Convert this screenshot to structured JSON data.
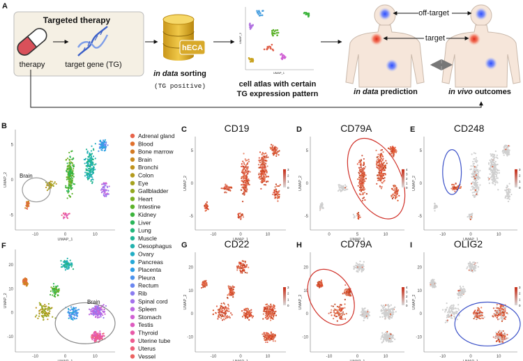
{
  "panel_a": {
    "label": "A",
    "box_title": "Targeted therapy",
    "therapy": "therapy",
    "target_gene": "target gene (TG)",
    "db_label": "hECA",
    "sorting": {
      "italic": "in data",
      "rest": "sorting"
    },
    "sorting_note": "(TG positive)",
    "inset_x_label": "UMAP_1",
    "inset_y_label": "UMAP_2",
    "atlas_caption": [
      "cell atlas with certain",
      "TG expression pattern"
    ],
    "off_target": "off-target",
    "target": "target",
    "prediction": {
      "italic": "in data",
      "rest": "prediction"
    },
    "outcomes": {
      "italic": "in vivo",
      "rest": "outcomes"
    }
  },
  "legend": [
    {
      "name": "Adrenal gland",
      "color": "#e8644a"
    },
    {
      "name": "Blood",
      "color": "#e0702c"
    },
    {
      "name": "Bone marrow",
      "color": "#d37a22"
    },
    {
      "name": "Brain",
      "color": "#c98a1e"
    },
    {
      "name": "Bronchi",
      "color": "#bf921c"
    },
    {
      "name": "Colon",
      "color": "#b39a1c"
    },
    {
      "name": "Eye",
      "color": "#a6a21e"
    },
    {
      "name": "Gallbladder",
      "color": "#93a820"
    },
    {
      "name": "Heart",
      "color": "#7aae22"
    },
    {
      "name": "Intestine",
      "color": "#5cb22a"
    },
    {
      "name": "Kidney",
      "color": "#3cb43c"
    },
    {
      "name": "Liver",
      "color": "#2ab65a"
    },
    {
      "name": "Lung",
      "color": "#22b67a"
    },
    {
      "name": "Muscle",
      "color": "#20b496"
    },
    {
      "name": "Oesophagus",
      "color": "#22b2ae"
    },
    {
      "name": "Ovary",
      "color": "#22aec4"
    },
    {
      "name": "Pancreas",
      "color": "#26a8d8"
    },
    {
      "name": "Placenta",
      "color": "#2e9ee6"
    },
    {
      "name": "Pleura",
      "color": "#4a92ee"
    },
    {
      "name": "Rectum",
      "color": "#6a86f0"
    },
    {
      "name": "Rib",
      "color": "#8a7cf0"
    },
    {
      "name": "Spinal cord",
      "color": "#a472ec"
    },
    {
      "name": "Spleen",
      "color": "#bc68e2"
    },
    {
      "name": "Stomach",
      "color": "#d062d4"
    },
    {
      "name": "Testis",
      "color": "#de5cc0"
    },
    {
      "name": "Thyroid",
      "color": "#e85aa8"
    },
    {
      "name": "Uterine tube",
      "color": "#ee5c90"
    },
    {
      "name": "Uterus",
      "color": "#ee6078"
    },
    {
      "name": "Vessel",
      "color": "#ec6462"
    }
  ],
  "panels": [
    {
      "label": "B",
      "annotation": "Brain",
      "x_label": "UMAP_1",
      "y_label": "UMAP_2",
      "xticks": [
        -10,
        0,
        10
      ],
      "yticks": [
        5,
        0,
        -5
      ]
    },
    {
      "label": "C",
      "title": "CD19",
      "x_label": "UMAP_1",
      "y_label": "UMAP_2",
      "xticks": [
        -10,
        0,
        10
      ],
      "yticks": [
        5,
        0,
        -5
      ],
      "colorbar": [
        3,
        2,
        1,
        0
      ]
    },
    {
      "label": "D",
      "title": "CD79A",
      "x_label": "UMAP_1",
      "y_label": "UMAP_2",
      "xticks": [
        0,
        5,
        10
      ],
      "yticks": [
        5,
        0,
        -5
      ],
      "colorbar": [
        4,
        3,
        2,
        1,
        0
      ]
    },
    {
      "label": "E",
      "title": "CD248",
      "x_label": "UMAP_1",
      "y_label": "UMAP_2",
      "xticks": [
        -10,
        0,
        10
      ],
      "yticks": [
        5,
        0,
        -5
      ],
      "colorbar": [
        3,
        2,
        1,
        0
      ]
    },
    {
      "label": "F",
      "annotation": "Brain",
      "x_label": "UMAP_1",
      "y_label": "UMAP_2",
      "xticks": [
        -10,
        0,
        10
      ],
      "yticks": [
        20,
        10,
        0,
        -10
      ]
    },
    {
      "label": "G",
      "title": "CD22",
      "x_label": "UMAP_1",
      "y_label": "UMAP_2",
      "xticks": [
        -10,
        0,
        10
      ],
      "yticks": [
        20,
        10,
        0,
        -10
      ],
      "colorbar": [
        3,
        2,
        1,
        0
      ]
    },
    {
      "label": "H",
      "title": "CD79A",
      "x_label": "UMAP_1",
      "y_label": "UMAP_2",
      "xticks": [
        -10,
        0,
        10
      ],
      "yticks": [
        20,
        10,
        0,
        -10
      ],
      "colorbar": [
        4,
        3,
        2,
        1,
        0
      ]
    },
    {
      "label": "I",
      "title": "OLIG2",
      "x_label": "UMAP_1",
      "y_label": "UMAP_2",
      "xticks": [
        -10,
        0,
        10
      ],
      "yticks": [
        20,
        10,
        0,
        -10
      ],
      "colorbar": [
        3,
        2,
        1,
        0
      ]
    }
  ]
}
